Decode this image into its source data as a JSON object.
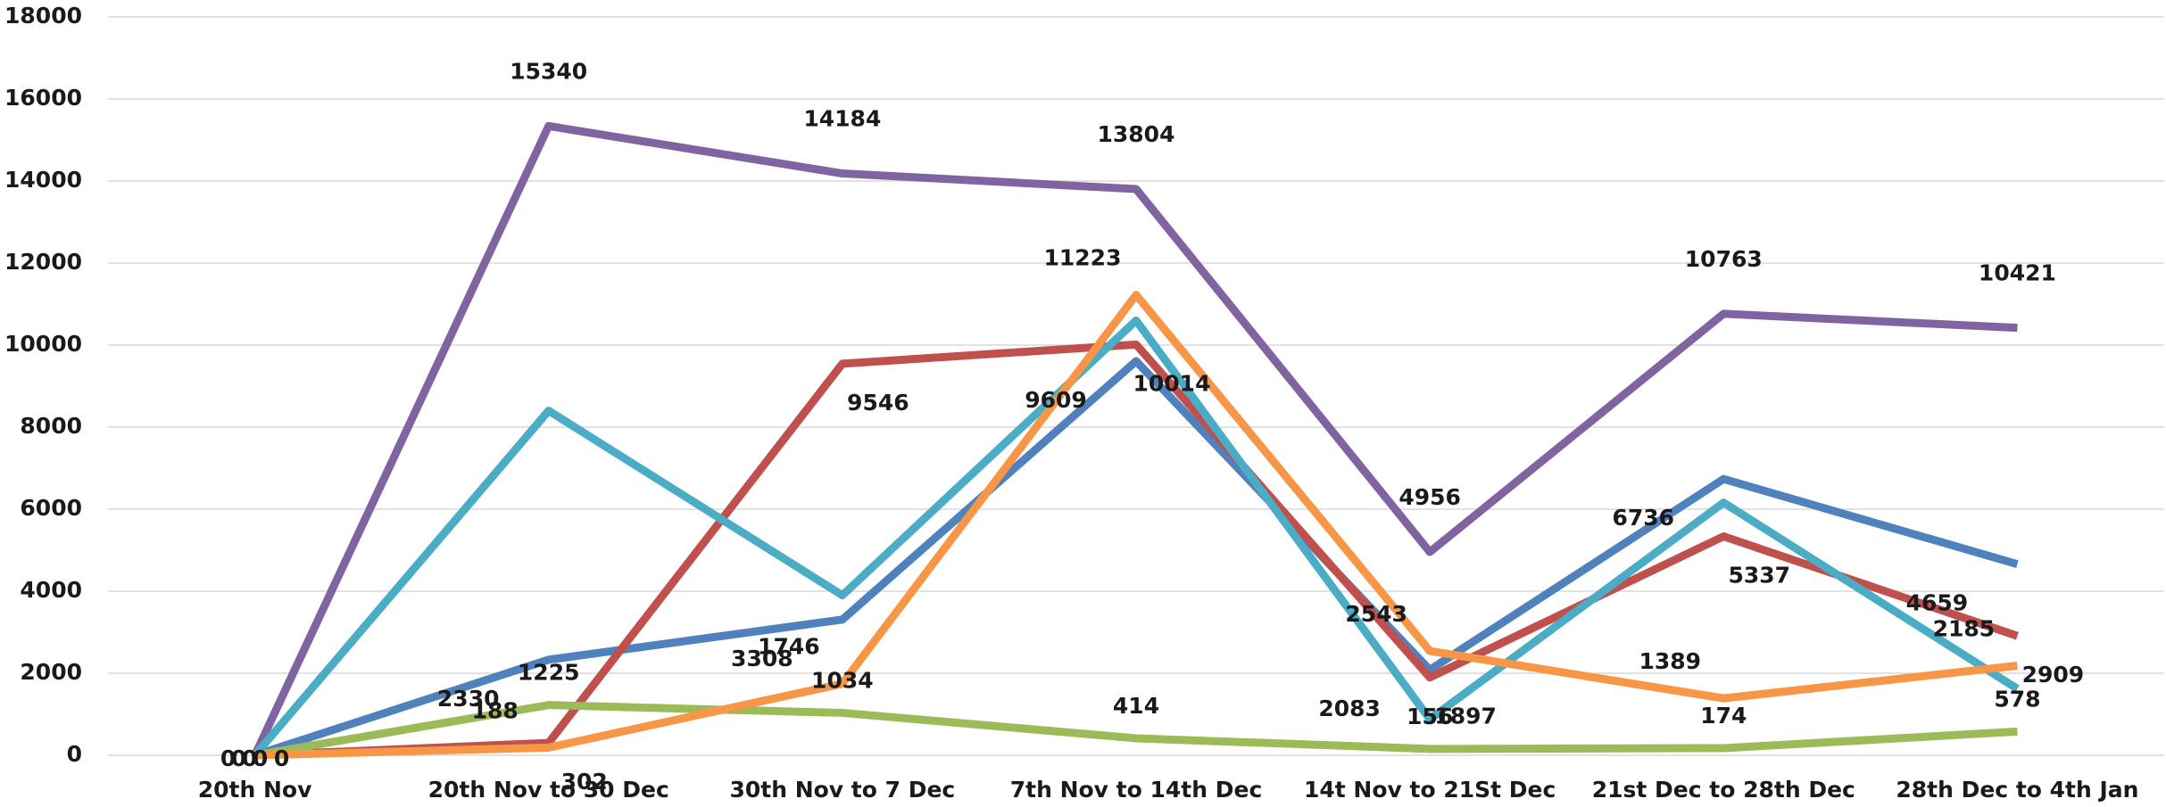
{
  "chart_data": {
    "type": "line",
    "categories": [
      "20th Nov",
      "20th Nov to 30 Dec",
      "30th Nov to 7 Dec",
      "7th Nov to 14th Dec",
      "14t Nov to 21St Dec",
      "21st Dec to 28th Dec",
      "28th Dec to 4th Jan"
    ],
    "series": [
      {
        "color": "#4f81bd",
        "values": [
          0,
          2330,
          3308,
          9609,
          2083,
          6736,
          4659
        ],
        "show_labels": true
      },
      {
        "color": "#c0504d",
        "values": [
          0,
          302,
          9546,
          10014,
          1897,
          5337,
          2909
        ],
        "show_labels": true
      },
      {
        "color": "#9bbb59",
        "values": [
          0,
          1225,
          1034,
          414,
          156,
          174,
          578
        ],
        "show_labels": true
      },
      {
        "color": "#8064a2",
        "values": [
          0,
          15340,
          14184,
          13804,
          4956,
          10763,
          10421
        ],
        "show_labels": true
      },
      {
        "color": "#4bacc6",
        "values": [
          0,
          8400,
          3900,
          10600,
          880,
          6160,
          1620
        ],
        "show_labels": false
      },
      {
        "color": "#f79646",
        "values": [
          0,
          188,
          1746,
          11223,
          2543,
          1389,
          2185
        ],
        "show_labels": true
      }
    ],
    "ylim": [
      0,
      18000
    ],
    "yticks": [
      0,
      2000,
      4000,
      6000,
      8000,
      10000,
      12000,
      14000,
      16000,
      18000
    ],
    "grid": true
  }
}
